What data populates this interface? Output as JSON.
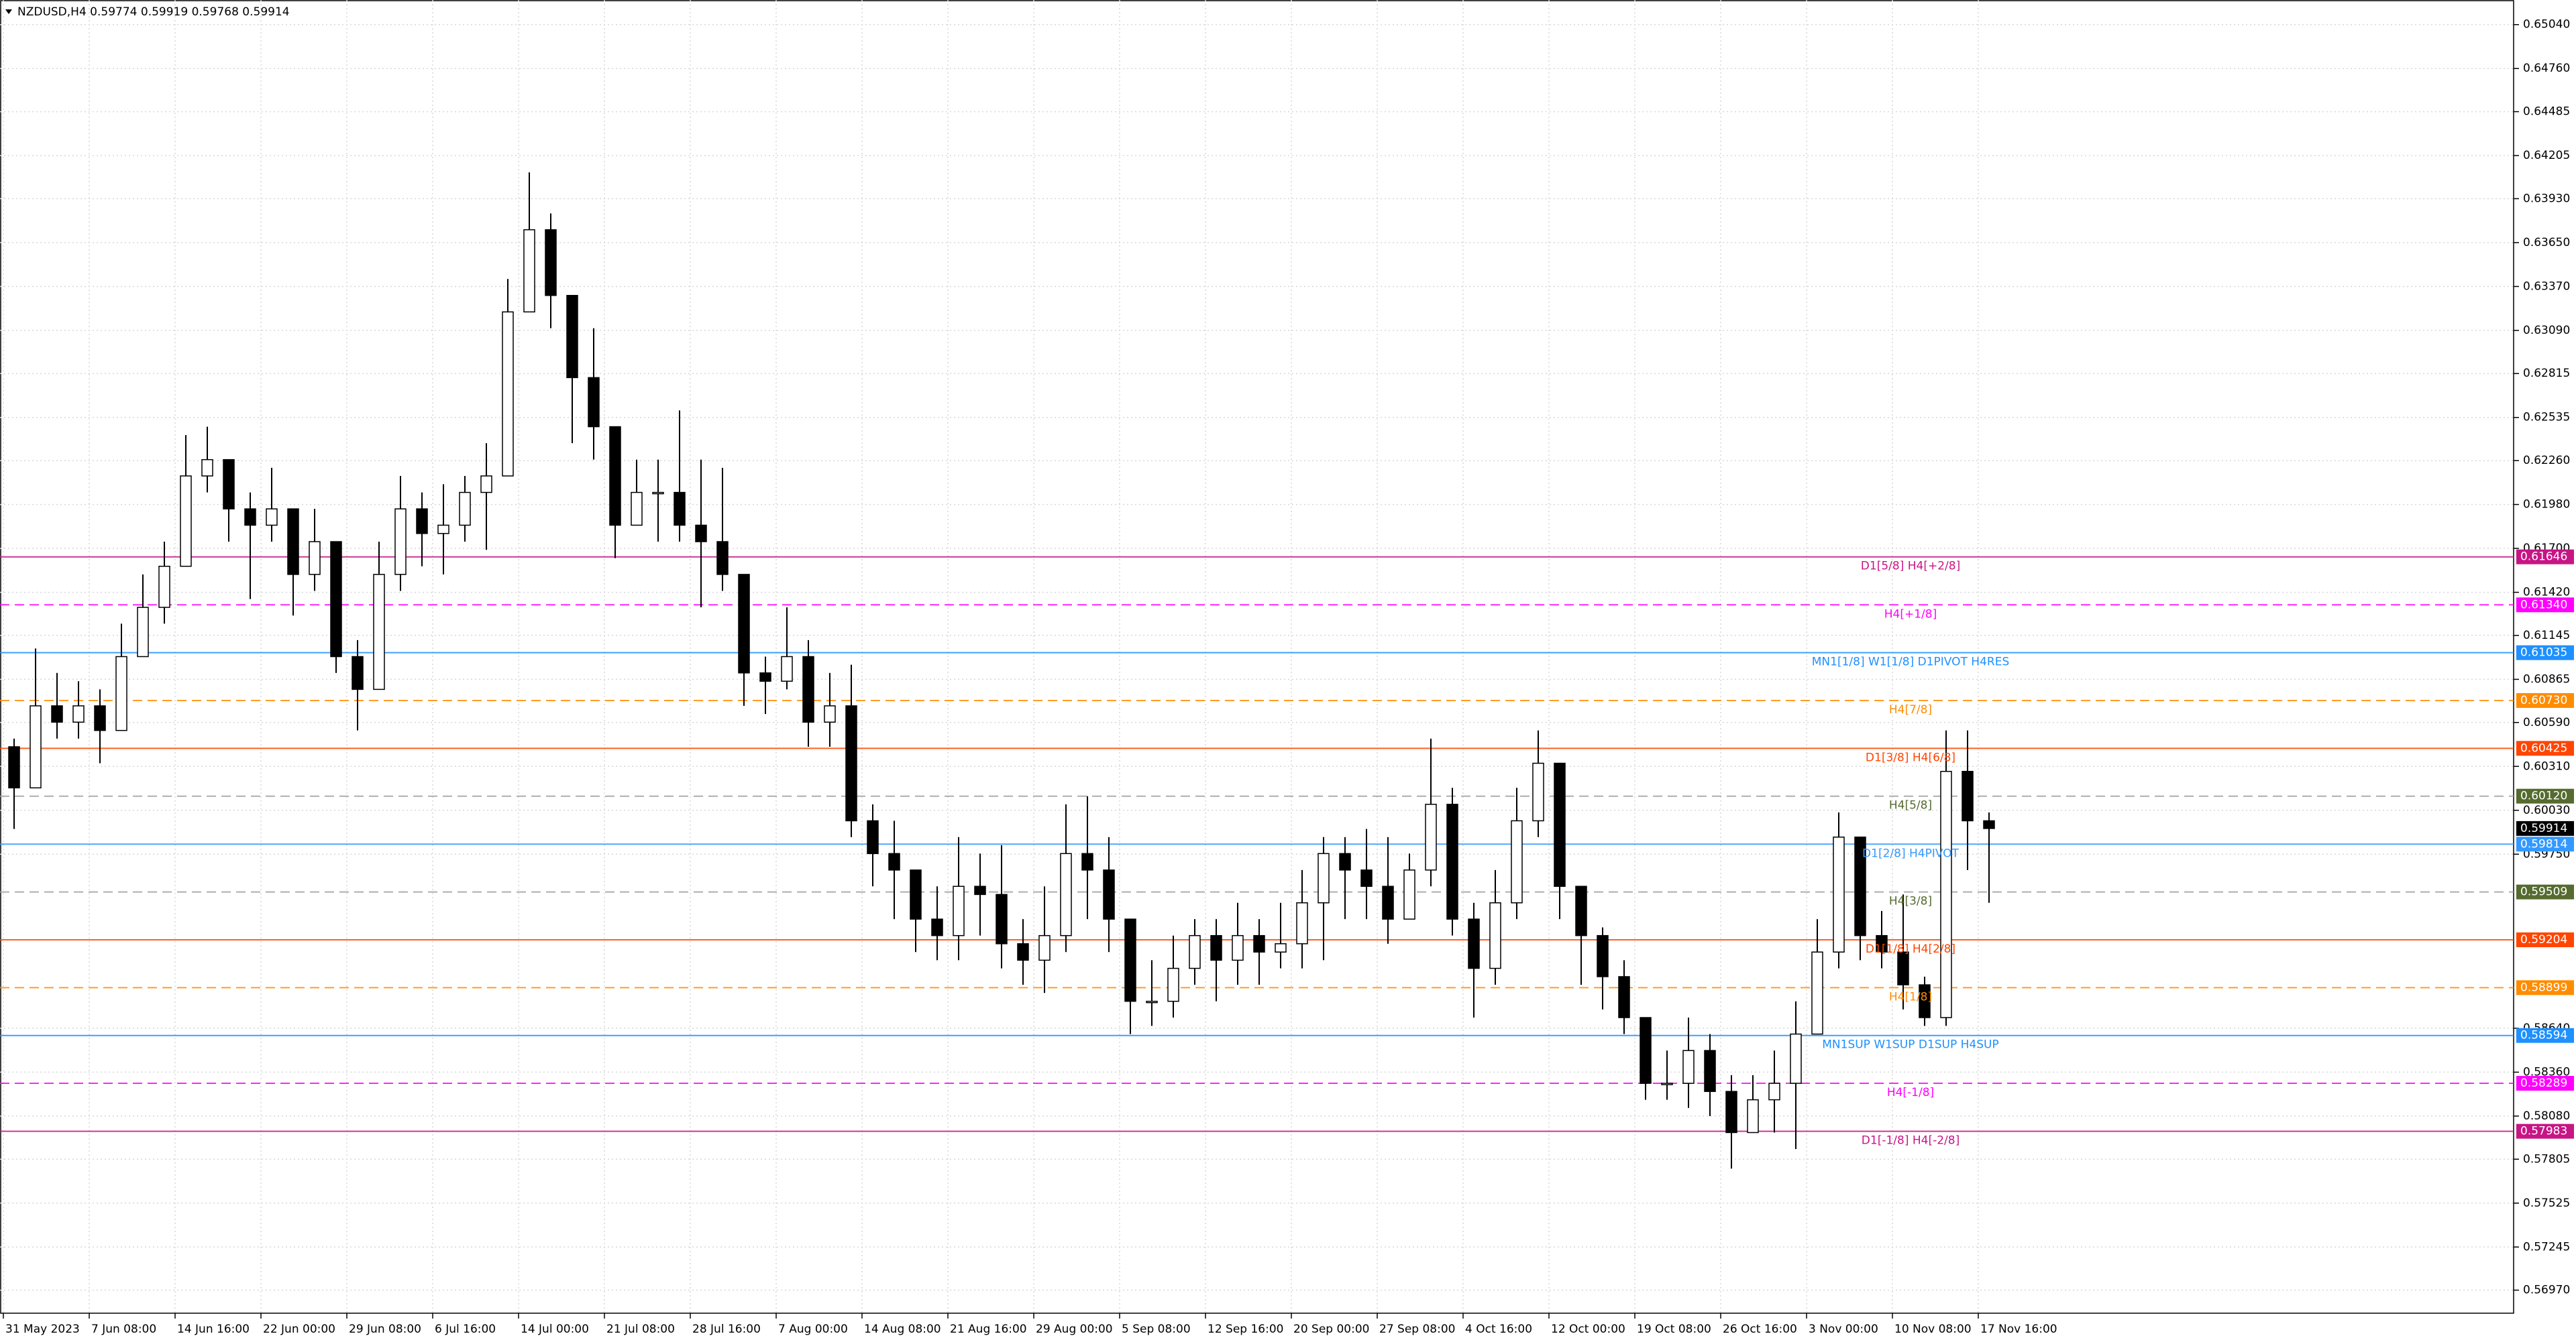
{
  "chart_data": {
    "type": "candlestick",
    "title": "NZDUSD,H4  0.59774 0.59919 0.59768 0.59914",
    "ylim": [
      0.56823,
      0.65197
    ],
    "grid": true,
    "yticks": [
      {
        "value": 0.6504,
        "label": "0.65040"
      },
      {
        "value": 0.6476,
        "label": "0.64760"
      },
      0.64485,
      0.64205,
      {
        "value": 0.6393,
        "label": "0.63930"
      },
      {
        "value": 0.6365,
        "label": "0.63650"
      },
      {
        "value": 0.6337,
        "label": "0.63370"
      },
      {
        "value": 0.6309,
        "label": "0.63090"
      },
      0.62815,
      0.62535,
      {
        "value": 0.6226,
        "label": "0.62260"
      },
      {
        "value": 0.6198,
        "label": "0.61980"
      },
      {
        "value": 0.617,
        "label": "0.61700"
      },
      {
        "value": 0.6142,
        "label": "0.61420"
      },
      0.61145,
      0.60865,
      {
        "value": 0.6059,
        "label": "0.60590"
      },
      {
        "value": 0.6031,
        "label": "0.60310"
      },
      {
        "value": 0.6003,
        "label": "0.60030"
      },
      {
        "value": 0.5975,
        "label": "0.59750"
      },
      {
        "value": 0.5864,
        "label": "0.58640"
      },
      {
        "value": 0.5836,
        "label": "0.58360"
      },
      {
        "value": 0.5808,
        "label": "0.58080"
      },
      0.57805,
      0.57525,
      0.57245,
      {
        "value": 0.5697,
        "label": "0.56970"
      }
    ],
    "x_tick_labels": [
      "31 May 2023",
      "7 Jun 08:00",
      "14 Jun 16:00",
      "22 Jun 00:00",
      "29 Jun 08:00",
      "6 Jul 16:00",
      "14 Jul 00:00",
      "21 Jul 08:00",
      "28 Jul 16:00",
      "7 Aug 00:00",
      "14 Aug 08:00",
      "21 Aug 16:00",
      "29 Aug 00:00",
      "5 Sep 08:00",
      "12 Sep 16:00",
      "20 Sep 00:00",
      "27 Sep 08:00",
      "4 Oct 16:00",
      "12 Oct 00:00",
      "19 Oct 08:00",
      "26 Oct 16:00",
      "3 Nov 00:00",
      "10 Nov 08:00",
      "17 Nov 16:00"
    ],
    "ohlc": [
      [
        0.60435,
        0.60487,
        0.59911,
        0.60173
      ],
      [
        0.60173,
        0.61062,
        0.60173,
        0.60696
      ],
      [
        0.60696,
        0.60906,
        0.60487,
        0.60592
      ],
      [
        0.60592,
        0.60853,
        0.60487,
        0.60696
      ],
      [
        0.60696,
        0.60801,
        0.6033,
        0.60539
      ],
      [
        0.60539,
        0.6122,
        0.60539,
        0.6101
      ],
      [
        0.6101,
        0.61534,
        0.6101,
        0.61324
      ],
      [
        0.61324,
        0.61743,
        0.6122,
        0.61586
      ],
      [
        0.61586,
        0.62423,
        0.61586,
        0.62162
      ],
      [
        0.62162,
        0.62476,
        0.62057,
        0.62266
      ],
      [
        0.62266,
        0.62266,
        0.61743,
        0.61952
      ],
      [
        0.61952,
        0.62057,
        0.61377,
        0.61848
      ],
      [
        0.61848,
        0.62214,
        0.61743,
        0.61952
      ],
      [
        0.61952,
        0.61952,
        0.61272,
        0.61534
      ],
      [
        0.61534,
        0.61952,
        0.61429,
        0.61743
      ],
      [
        0.61743,
        0.61743,
        0.60906,
        0.6101
      ],
      [
        0.6101,
        0.61115,
        0.60539,
        0.60801
      ],
      [
        0.60801,
        0.61743,
        0.60801,
        0.61534
      ],
      [
        0.61534,
        0.62162,
        0.61429,
        0.61952
      ],
      [
        0.61952,
        0.62057,
        0.61586,
        0.61795
      ],
      [
        0.61795,
        0.62109,
        0.61534,
        0.61848
      ],
      [
        0.61848,
        0.62162,
        0.61743,
        0.62057
      ],
      [
        0.62057,
        0.62371,
        0.61691,
        0.62162
      ],
      [
        0.62162,
        0.63418,
        0.62162,
        0.63208
      ],
      [
        0.63208,
        0.64098,
        0.63208,
        0.63732
      ],
      [
        0.63732,
        0.63836,
        0.63104,
        0.63313
      ],
      [
        0.63313,
        0.63313,
        0.62371,
        0.62789
      ],
      [
        0.62789,
        0.63104,
        0.62266,
        0.62476
      ],
      [
        0.62476,
        0.62476,
        0.61638,
        0.61848
      ],
      [
        0.61848,
        0.62266,
        0.61848,
        0.62057
      ],
      [
        0.62057,
        0.62266,
        0.61743,
        0.62057
      ],
      [
        0.62057,
        0.6258,
        0.61743,
        0.61848
      ],
      [
        0.61848,
        0.62266,
        0.61324,
        0.61743
      ],
      [
        0.61743,
        0.62214,
        0.61429,
        0.61534
      ],
      [
        0.61534,
        0.61534,
        0.60696,
        0.60906
      ],
      [
        0.60906,
        0.6101,
        0.60644,
        0.60853
      ],
      [
        0.60853,
        0.61324,
        0.60801,
        0.6101
      ],
      [
        0.6101,
        0.61115,
        0.60435,
        0.60592
      ],
      [
        0.60592,
        0.60906,
        0.60435,
        0.60696
      ],
      [
        0.60696,
        0.60958,
        0.59859,
        0.59963
      ],
      [
        0.59963,
        0.60068,
        0.59545,
        0.59754
      ],
      [
        0.59754,
        0.59963,
        0.59336,
        0.59649
      ],
      [
        0.59649,
        0.59649,
        0.59126,
        0.59336
      ],
      [
        0.59336,
        0.59545,
        0.59074,
        0.59231
      ],
      [
        0.59231,
        0.59859,
        0.59074,
        0.59545
      ],
      [
        0.59545,
        0.59754,
        0.59231,
        0.59493
      ],
      [
        0.59493,
        0.59807,
        0.59022,
        0.59179
      ],
      [
        0.59179,
        0.59336,
        0.58917,
        0.59074
      ],
      [
        0.59074,
        0.59545,
        0.58865,
        0.59231
      ],
      [
        0.59231,
        0.60068,
        0.59126,
        0.59754
      ],
      [
        0.59754,
        0.6012,
        0.59336,
        0.59649
      ],
      [
        0.59649,
        0.59859,
        0.59126,
        0.59336
      ],
      [
        0.59336,
        0.59336,
        0.58603,
        0.58812
      ],
      [
        0.58812,
        0.59074,
        0.58655,
        0.58812
      ],
      [
        0.58812,
        0.59231,
        0.58708,
        0.59022
      ],
      [
        0.59022,
        0.59336,
        0.58917,
        0.59231
      ],
      [
        0.59231,
        0.59336,
        0.58812,
        0.59074
      ],
      [
        0.59074,
        0.5944,
        0.58917,
        0.59231
      ],
      [
        0.59231,
        0.59336,
        0.58917,
        0.59126
      ],
      [
        0.59126,
        0.5944,
        0.59022,
        0.59179
      ],
      [
        0.59179,
        0.59649,
        0.59022,
        0.5944
      ],
      [
        0.5944,
        0.59859,
        0.59074,
        0.59754
      ],
      [
        0.59754,
        0.59859,
        0.59336,
        0.59649
      ],
      [
        0.59649,
        0.59911,
        0.59336,
        0.59545
      ],
      [
        0.59545,
        0.59859,
        0.59179,
        0.59336
      ],
      [
        0.59336,
        0.59754,
        0.59336,
        0.59649
      ],
      [
        0.59649,
        0.60487,
        0.59545,
        0.60068
      ],
      [
        0.60068,
        0.60173,
        0.59231,
        0.59336
      ],
      [
        0.59336,
        0.5944,
        0.58708,
        0.59022
      ],
      [
        0.59022,
        0.59649,
        0.58917,
        0.5944
      ],
      [
        0.5944,
        0.60173,
        0.59336,
        0.59963
      ],
      [
        0.59963,
        0.60539,
        0.59859,
        0.6033
      ],
      [
        0.6033,
        0.6033,
        0.59336,
        0.59545
      ],
      [
        0.59545,
        0.59545,
        0.58917,
        0.59231
      ],
      [
        0.59231,
        0.59283,
        0.5876,
        0.58969
      ],
      [
        0.58969,
        0.59074,
        0.58603,
        0.58708
      ],
      [
        0.58708,
        0.58708,
        0.58184,
        0.58289
      ],
      [
        0.58289,
        0.58498,
        0.58184,
        0.58289
      ],
      [
        0.58289,
        0.58708,
        0.58132,
        0.58498
      ],
      [
        0.58498,
        0.58603,
        0.5808,
        0.58237
      ],
      [
        0.58237,
        0.58341,
        0.57745,
        0.57975
      ],
      [
        0.57975,
        0.58341,
        0.57975,
        0.58184
      ],
      [
        0.58184,
        0.58498,
        0.57975,
        0.58289
      ],
      [
        0.58289,
        0.58812,
        0.5787,
        0.58603
      ],
      [
        0.58603,
        0.59336,
        0.58603,
        0.59126
      ],
      [
        0.59126,
        0.60016,
        0.59022,
        0.59859
      ],
      [
        0.59859,
        0.59859,
        0.59074,
        0.59231
      ],
      [
        0.59231,
        0.59388,
        0.59022,
        0.59126
      ],
      [
        0.59126,
        0.59493,
        0.5876,
        0.58917
      ],
      [
        0.58917,
        0.58969,
        0.58655,
        0.58708
      ],
      [
        0.58708,
        0.60539,
        0.58655,
        0.60278
      ],
      [
        0.60278,
        0.60539,
        0.59649,
        0.59963
      ],
      [
        0.59963,
        0.60016,
        0.5944,
        0.59914
      ]
    ],
    "current_price": 0.59914,
    "levels": [
      {
        "label": "D1[5/8] H4[+2/8]",
        "price": 0.61646,
        "color": "#c71585",
        "dashed": false
      },
      {
        "label": "H4[+1/8]",
        "price": {
          "value": 0.6134,
          "label": "0.61340"
        },
        "color": "#ff00ff",
        "dashed": true
      },
      {
        "label": "MN1[1/8] W1[1/8] D1PIVOT H4RES",
        "price": 0.61035,
        "color": "#1e90ff",
        "dashed": false
      },
      {
        "label": "H4[7/8]",
        "price": {
          "value": 0.6073,
          "label": "0.60730"
        },
        "color": "#ff8c00",
        "dashed": true
      },
      {
        "label": "D1[3/8] H4[6/8]",
        "price": 0.60425,
        "color": "#ff4500",
        "dashed": false
      },
      {
        "label": "H4[5/8]",
        "price": {
          "value": 0.6012,
          "label": "0.60120"
        },
        "color": "#556b2f",
        "dashed": true
      },
      {
        "label": "D1[2/8] H4PIVOT",
        "price": 0.59814,
        "color": "#3399ff",
        "dashed": false
      },
      {
        "label": "H4[3/8]",
        "price": 0.59509,
        "color": "#556b2f",
        "dashed": true
      },
      {
        "label": "D1[1/8] H4[2/8]",
        "price": 0.59204,
        "color": "#ff4500",
        "dashed": false
      },
      {
        "label": "H4[1/8]",
        "price": 0.58899,
        "color": "#ff8c00",
        "dashed": true
      },
      {
        "label": "MN1SUP W1SUP D1SUP H4SUP",
        "price": 0.58594,
        "color": "#1e90ff",
        "dashed": false
      },
      {
        "label": "H4[-1/8]",
        "price": 0.58289,
        "color": "#ff00ff",
        "dashed": true
      },
      {
        "label": "D1[-1/8] H4[-2/8]",
        "price": 0.57983,
        "color": "#c71585",
        "dashed": false
      }
    ]
  }
}
